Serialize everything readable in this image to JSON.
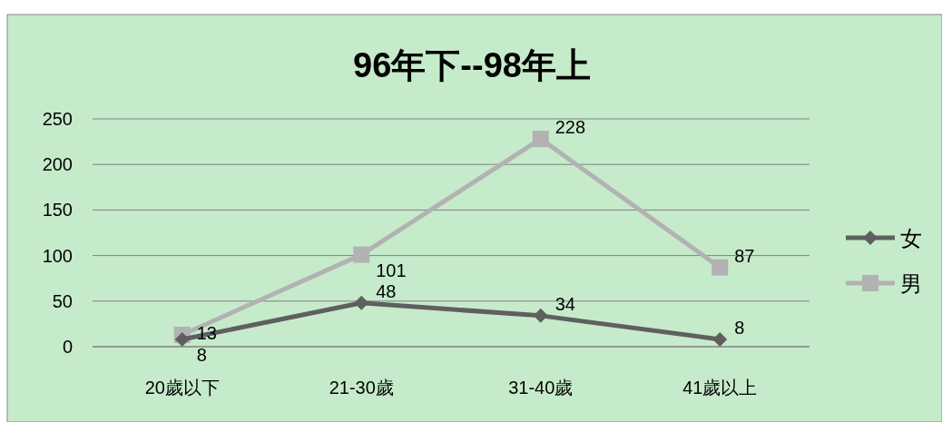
{
  "chart_data": {
    "type": "line",
    "title": "96年下--98年上",
    "categories": [
      "20歲以下",
      "21-30歲",
      "31-40歲",
      "41歲以上"
    ],
    "series": [
      {
        "name": "女",
        "color": "#5f5f5f",
        "values": [
          8,
          48,
          34,
          8
        ],
        "marker": "diamond"
      },
      {
        "name": "男",
        "color": "#b2b2b2",
        "values": [
          13,
          101,
          228,
          87
        ],
        "marker": "square"
      }
    ],
    "ylim": [
      0,
      250
    ],
    "yticks": [
      0,
      50,
      100,
      150,
      200,
      250
    ],
    "grid": "y",
    "legend": "right",
    "data_labels": true
  }
}
